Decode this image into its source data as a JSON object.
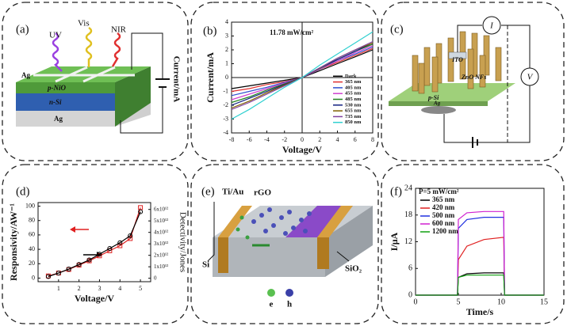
{
  "chart_data": [
    {
      "type": "line",
      "panel": "(b)",
      "annotation": "11.78 mW/cm²",
      "xlabel": "Voltage/V",
      "ylabel": "Current/mA",
      "x": [
        -8,
        -6,
        -4,
        -2,
        0,
        2,
        4,
        6,
        8
      ],
      "xlim": [
        -8,
        8
      ],
      "xticks": [
        -8,
        -6,
        -4,
        -2,
        0,
        2,
        4,
        6,
        8
      ],
      "ylim": [
        -4,
        4
      ],
      "yticks": [
        -4,
        -3,
        -2,
        -1,
        0,
        1,
        2,
        3,
        4
      ],
      "legend": "lower right",
      "series": [
        {
          "name": "Dark",
          "color": "#000000",
          "values": [
            -0.8,
            -0.6,
            -0.4,
            -0.2,
            0,
            0.5,
            1.0,
            1.5,
            2.0
          ]
        },
        {
          "name": "365 nm",
          "color": "#e03030",
          "values": [
            -1.0,
            -0.8,
            -0.5,
            -0.3,
            0,
            0.6,
            1.1,
            1.6,
            2.1
          ]
        },
        {
          "name": "405 nm",
          "color": "#3050d0",
          "values": [
            -1.3,
            -1.0,
            -0.7,
            -0.35,
            0,
            0.6,
            1.2,
            1.7,
            2.2
          ]
        },
        {
          "name": "455 nm",
          "color": "#d040d0",
          "values": [
            -1.6,
            -1.2,
            -0.8,
            -0.4,
            0,
            0.6,
            1.2,
            1.8,
            2.3
          ]
        },
        {
          "name": "485 nm",
          "color": "#208020",
          "values": [
            -1.8,
            -1.4,
            -0.9,
            -0.45,
            0,
            0.65,
            1.3,
            1.9,
            2.4
          ]
        },
        {
          "name": "530 nm",
          "color": "#102080",
          "values": [
            -2.0,
            -1.5,
            -1.0,
            -0.5,
            0,
            0.7,
            1.3,
            1.9,
            2.5
          ]
        },
        {
          "name": "655 nm",
          "color": "#806000",
          "values": [
            -2.2,
            -1.7,
            -1.1,
            -0.55,
            0,
            0.7,
            1.4,
            2.0,
            2.5
          ]
        },
        {
          "name": "735 nm",
          "color": "#8040a0",
          "values": [
            -2.3,
            -1.8,
            -1.2,
            -0.6,
            0,
            0.7,
            1.4,
            2.0,
            2.6
          ]
        },
        {
          "name": "850 nm",
          "color": "#30d0d0",
          "values": [
            -3.0,
            -2.3,
            -1.5,
            -0.7,
            0,
            0.9,
            1.7,
            2.5,
            3.3
          ]
        }
      ]
    },
    {
      "type": "line",
      "panel": "(d)",
      "xlabel": "Voltage/V",
      "ylabel": "Responsivity/AW⁻¹",
      "y2label": "Detectivity/Jones",
      "x": [
        0.5,
        1,
        1.5,
        2,
        2.5,
        3,
        3.5,
        4,
        4.5,
        5
      ],
      "xlim": [
        0,
        5.5
      ],
      "xticks": [
        1,
        2,
        3,
        4,
        5
      ],
      "ylim": [
        -5,
        105
      ],
      "yticks": [
        0,
        20,
        40,
        60,
        80,
        100
      ],
      "y2lim": [
        -300000000000,
        6600000000000
      ],
      "y2ticks": [
        0,
        {
          "value": 1000000000000,
          "label": "1x10¹²"
        },
        {
          "value": 2000000000000,
          "label": "2x10¹²"
        },
        {
          "value": 3000000000000,
          "label": "3x10¹²"
        },
        {
          "value": 4000000000000,
          "label": "4x10¹²"
        },
        {
          "value": 5000000000000,
          "label": "5x10¹²"
        },
        {
          "value": 6000000000000,
          "label": "6x10¹²"
        }
      ],
      "series": [
        {
          "color": "#e02020",
          "marker": "square",
          "values": [
            3,
            7,
            12,
            18,
            24,
            31,
            38,
            45,
            55,
            98
          ]
        },
        {
          "color": "#000000",
          "marker": "circle",
          "axis": "y2",
          "values": [
            150000000000,
            450000000000,
            800000000000,
            1200000000000,
            1600000000000,
            2100000000000,
            2600000000000,
            3100000000000,
            3700000000000,
            5800000000000
          ]
        }
      ]
    },
    {
      "type": "line",
      "panel": "(f)",
      "legend_title": "P=5 mW/cm²",
      "xlabel": "Time/s",
      "ylabel": "I/μA",
      "x": [
        0,
        4.9,
        5,
        6,
        8,
        10.3,
        10.4,
        15
      ],
      "xlim": [
        0,
        15
      ],
      "xticks": [
        0,
        5,
        10,
        15
      ],
      "ylim": [
        0,
        24
      ],
      "yticks": [
        0,
        6,
        12,
        18,
        24
      ],
      "legend": "upper left",
      "series": [
        {
          "name": "365 nm",
          "color": "#000000",
          "values": [
            0,
            0,
            4,
            4.8,
            5,
            5,
            0,
            0
          ]
        },
        {
          "name": "420 nm",
          "color": "#e02020",
          "values": [
            0,
            0,
            8,
            11,
            12.5,
            13,
            0,
            0
          ]
        },
        {
          "name": "500 nm",
          "color": "#2030e0",
          "values": [
            0,
            0,
            15,
            17,
            17.5,
            17.5,
            0,
            0
          ]
        },
        {
          "name": "600 nm",
          "color": "#d020d0",
          "values": [
            0,
            0,
            17,
            18.5,
            18.8,
            18.8,
            0,
            0
          ]
        },
        {
          "name": "1200 nm",
          "color": "#10a010",
          "values": [
            0,
            0,
            4,
            4.5,
            4.5,
            4.5,
            0,
            0
          ]
        }
      ]
    }
  ],
  "panel_a": {
    "label": "(a)",
    "uv": "UV",
    "vis": "Vis",
    "nir": "NIR",
    "ag_top": "Ag",
    "p_layer": "p-NiO",
    "n_layer": "n-Si",
    "ag_bottom": "Ag",
    "meter": "Current/mA"
  },
  "panel_c": {
    "label": "(c)",
    "current": "I",
    "voltage": "V",
    "ito": "ITO",
    "rods": "ZnO NFs",
    "substrate": "p-Si",
    "contact": "Ag"
  },
  "panel_e": {
    "label": "(e)",
    "electrode": "Ti/Au",
    "sheet": "rGO",
    "substrate": "Si",
    "oxide": "SiO₂",
    "electron": "e",
    "hole": "h"
  }
}
